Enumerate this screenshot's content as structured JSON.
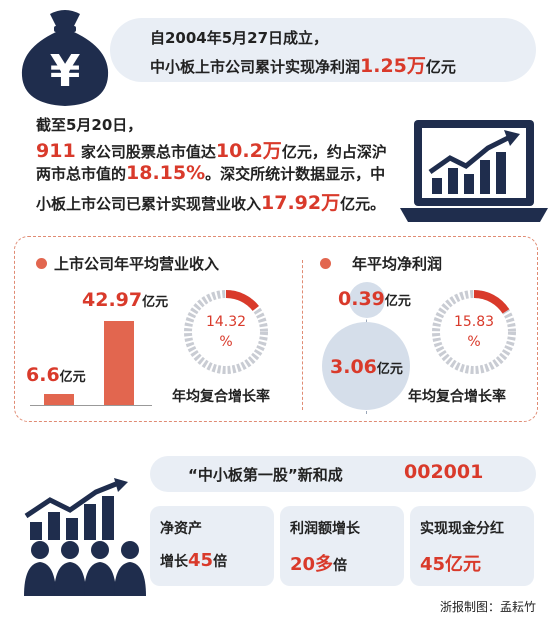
{
  "header": {
    "line1": "自2004年5月27日成立，",
    "line2_prefix": "中小板上市公司累计实现净利润",
    "line2_value": "1.25万",
    "line2_suffix": "亿元"
  },
  "paragraph": {
    "line1": "截至5月20日，",
    "companies": "911",
    "line2_a": "家公司股票总市值达",
    "market_cap": "10.2万",
    "line2_b": "亿元，约占深沪",
    "line3_a": "两市总市值的",
    "share": "18.15%",
    "line3_b": "。深交所统计数据显示，中",
    "line4_a": "小板上市公司已累计实现营业收入",
    "revenue": "17.92万",
    "line4_b": "亿元。"
  },
  "revenue_section": {
    "title": "上市公司年平均营业收入",
    "bar_small_value": "6.6",
    "bar_large_value": "42.97",
    "unit": "亿元",
    "ring_value": "14.32",
    "ring_pct": "%",
    "ring_fraction": 0.1432,
    "caption": "年均复合增长率"
  },
  "profit_section": {
    "title": "年平均净利润",
    "small_value": "0.39",
    "large_value": "3.06",
    "unit": "亿元",
    "ring_value": "15.83",
    "ring_pct": "%",
    "ring_fraction": 0.1583,
    "caption": "年均复合增长率"
  },
  "stock": {
    "label": "“中小板第一股”新和成",
    "code": "002001"
  },
  "cards": [
    {
      "line1": "净资产",
      "prefix": "增长",
      "value": "45",
      "suffix": "倍"
    },
    {
      "line1": "利润额增长",
      "prefix": "",
      "value": "20多",
      "suffix": "倍"
    },
    {
      "line1": "实现现金分红",
      "prefix": "",
      "value": "45亿元",
      "suffix": ""
    }
  ],
  "credit": "浙报制图：孟耘竹",
  "colors": {
    "accent": "#d93a2b",
    "panel": "#e9eef5",
    "icon": "#1f2d4d",
    "ring": "#c9ccd3"
  }
}
